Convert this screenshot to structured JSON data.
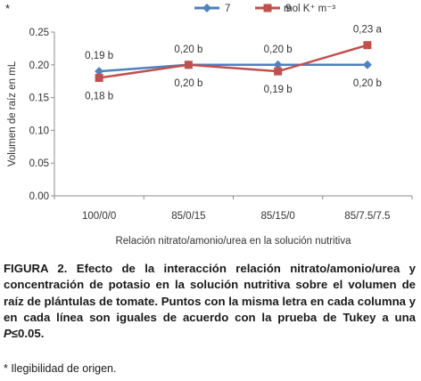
{
  "chart_data": {
    "type": "line",
    "categories": [
      "100/0/0",
      "85/0/15",
      "85/15/0",
      "85/7.5/7.5"
    ],
    "series": [
      {
        "name": "7",
        "color": "#4f81bd",
        "marker": "diamond",
        "values": [
          0.19,
          0.2,
          0.2,
          0.2
        ],
        "labels": [
          "0,19 b",
          "0,20 b",
          "0,20 b",
          "0,20 b"
        ]
      },
      {
        "name": "9",
        "color": "#c0504d",
        "marker": "square",
        "values": [
          0.18,
          0.2,
          0.19,
          0.23
        ],
        "labels": [
          "0,18 b",
          "0,20 b",
          "0,19 b",
          "0,23 a"
        ]
      }
    ],
    "legend_unit": "mol K⁺ m⁻³",
    "legend_position": "top",
    "xlabel": "Relación nitrato/amonio/urea en la solución nutritiva",
    "ylabel": "Volumen de raíz en mL",
    "ylim": [
      0,
      0.25
    ],
    "yticks": [
      "0.00",
      "0.05",
      "0.10",
      "0.15",
      "0.20",
      "0.25"
    ],
    "grid": false
  },
  "top_mark": "*",
  "caption": {
    "label": "FIGURA 2.",
    "text_before": " Efecto de la interacción  relación nitrato/amonio/urea y concentración de potasio en la solución nutritiva sobre el volumen de raíz de plántulas de tomate. Puntos con la misma letra en cada columna y en cada línea son iguales de acuerdo con la prueba de Tukey a una ",
    "p_symbol": "P",
    "text_after": "≤0.05."
  },
  "footnote": "* Ilegibilidad de origen."
}
